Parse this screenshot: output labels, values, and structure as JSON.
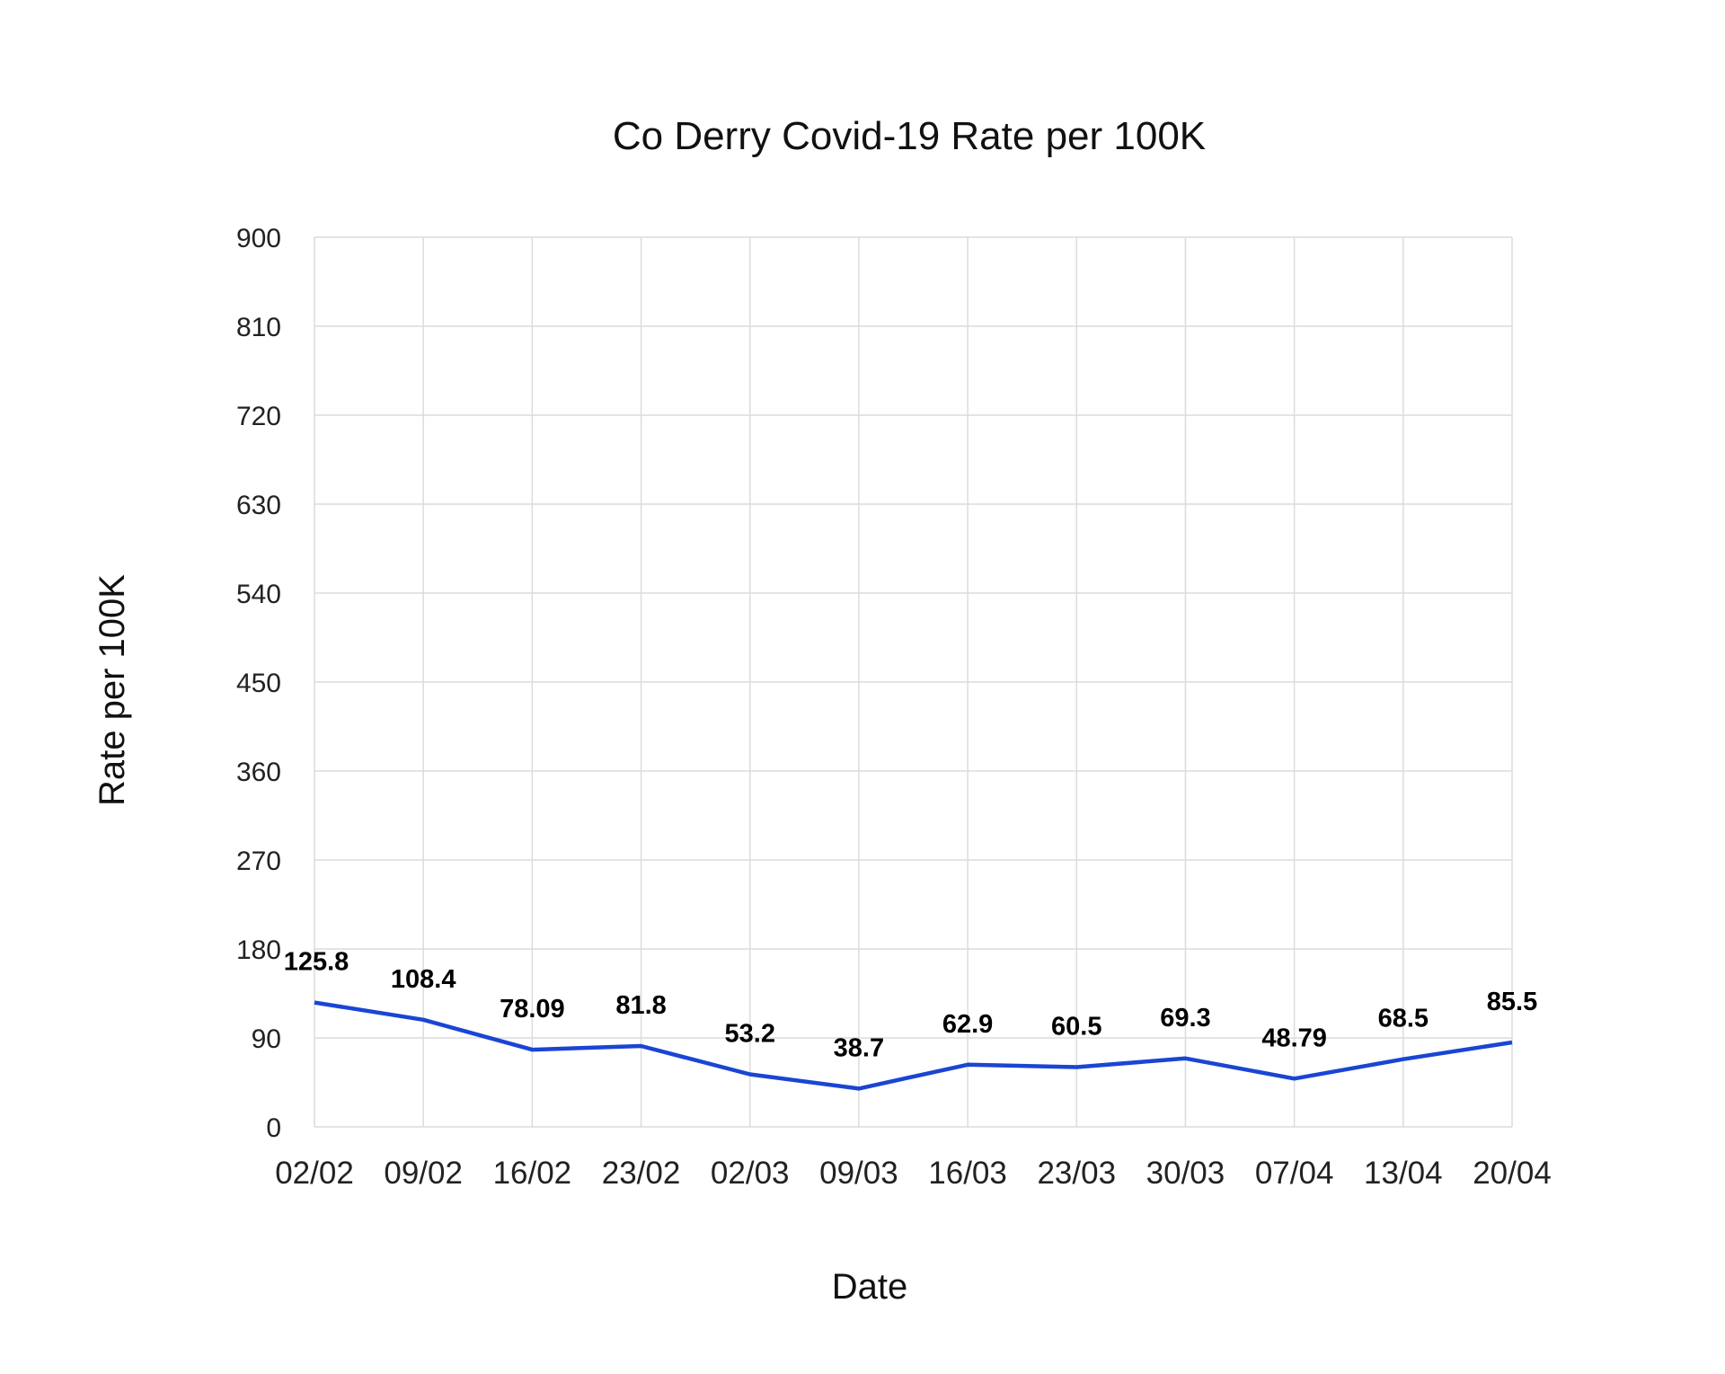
{
  "chart_data": {
    "type": "line",
    "title": "Co Derry Covid-19 Rate per 100K",
    "xlabel": "Date",
    "ylabel": "Rate per 100K",
    "categories": [
      "02/02",
      "09/02",
      "16/02",
      "23/02",
      "02/03",
      "09/03",
      "16/03",
      "23/03",
      "30/03",
      "07/04",
      "13/04",
      "20/04"
    ],
    "series": [
      {
        "values": [
          125.8,
          108.4,
          78.09,
          81.8,
          53.2,
          38.7,
          62.9,
          60.5,
          69.3,
          48.79,
          68.5,
          85.5
        ],
        "labels": [
          "125.8",
          "108.4",
          "78.09",
          "81.8",
          "53.2",
          "38.7",
          "62.9",
          "60.5",
          "69.3",
          "48.79",
          "68.5",
          "85.5"
        ],
        "color": "#1a45d4"
      }
    ],
    "ylim": [
      0,
      900
    ],
    "yticks": [
      "0",
      "90",
      "180",
      "270",
      "360",
      "450",
      "540",
      "630",
      "720",
      "810",
      "900"
    ],
    "grid": true,
    "legend": "none"
  }
}
